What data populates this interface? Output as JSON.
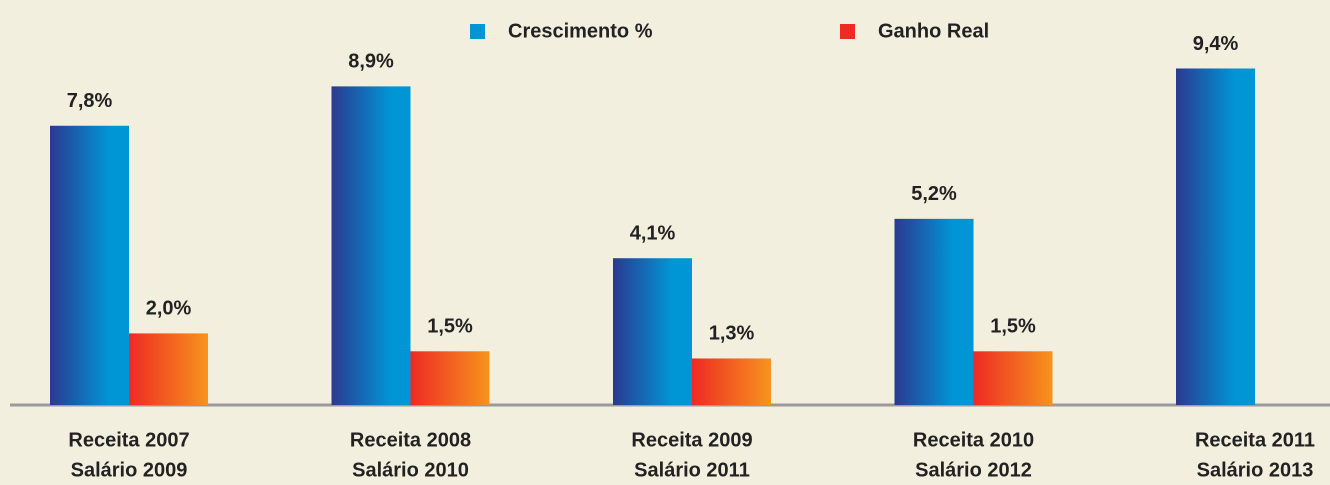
{
  "chart_data": {
    "type": "bar",
    "categories": [
      [
        "Receita 2007",
        "Salário  2009"
      ],
      [
        "Receita 2008",
        "Salário  2010"
      ],
      [
        "Receita 2009",
        "Salário  2011"
      ],
      [
        "Receita 2010",
        "Salário  2012"
      ],
      [
        "Receita 2011",
        "Salário  2013"
      ]
    ],
    "series": [
      {
        "name": "Crescimento %",
        "color": "#0096d6",
        "values": [
          7.8,
          8.9,
          4.1,
          5.2,
          9.4
        ],
        "value_labels": [
          "7,8%",
          "8,9%",
          "4,1%",
          "5,2%",
          "9,4%"
        ]
      },
      {
        "name": "Ganho Real",
        "color": "#ee2a24",
        "values": [
          2.0,
          1.5,
          1.3,
          1.5,
          null
        ],
        "value_labels": [
          "2,0%",
          "1,5%",
          "1,3%",
          "1,5%",
          null
        ]
      }
    ],
    "legend": "top"
  }
}
